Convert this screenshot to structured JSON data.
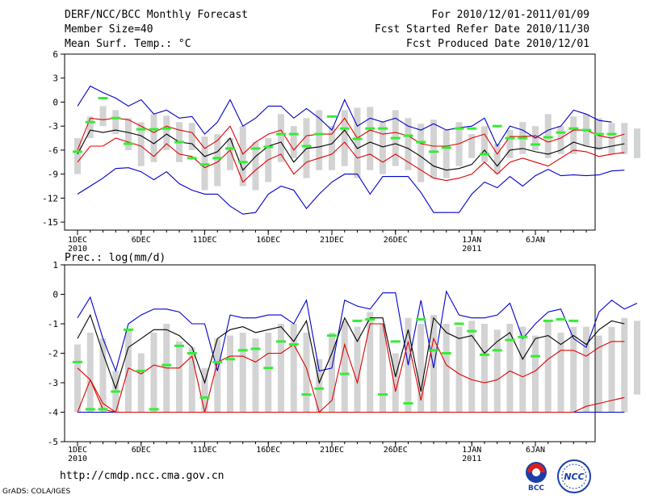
{
  "header": {
    "title": "DERF/NCC/BCC Monthly Forecast",
    "member_size": "Member Size=40",
    "period": "For 2010/12/01-2011/01/09",
    "fcst_started": "Fcst Started Refer Date 2010/11/30",
    "fcst_produced": "Fcst Produced Date 2010/12/01"
  },
  "footer": {
    "url": "http://cmdp.ncc.cma.gov.cn",
    "grads_credit": "GrADS: COLA/IGES",
    "logo_bcc": "BCC",
    "logo_ncc": "NCC"
  },
  "colors": {
    "box": "#d3d3d3",
    "ensemble_mean": "#000000",
    "inner_band": "#e00000",
    "outer_band": "#0000cc",
    "observed": "#33ee33"
  },
  "chart_data": [
    {
      "type": "line",
      "title": "Mean Surf. Temp.: °C",
      "ylim": [
        -16,
        6
      ],
      "yticks": [
        6,
        3,
        0,
        -3,
        -6,
        -9,
        -12,
        -15
      ],
      "xticks": [
        {
          "day": 1,
          "label": "1DEC",
          "sub": "2010"
        },
        {
          "day": 6,
          "label": "6DEC",
          "sub": ""
        },
        {
          "day": 11,
          "label": "11DEC",
          "sub": ""
        },
        {
          "day": 16,
          "label": "16DEC",
          "sub": ""
        },
        {
          "day": 21,
          "label": "21DEC",
          "sub": ""
        },
        {
          "day": 26,
          "label": "26DEC",
          "sub": ""
        },
        {
          "day": 32,
          "label": "1JAN",
          "sub": "2011"
        },
        {
          "day": 37,
          "label": "6JAN",
          "sub": ""
        }
      ],
      "box_top": [
        -4.5,
        -1.8,
        -0.5,
        -1.0,
        -2.0,
        -2.5,
        -1.5,
        -1.7,
        -2.5,
        -2.6,
        -4.3,
        -4.0,
        -4.5,
        -3.0,
        -5.0,
        -4.5,
        -1.5,
        -3.0,
        -2.0,
        -1.0,
        -3.0,
        -1.0,
        -0.7,
        -0.6,
        -2.5,
        -1.0,
        -2.0,
        -2.7,
        -2.2,
        -3.5,
        -2.5,
        -4.0,
        -3.0,
        -5.2,
        -3.5,
        -2.5,
        -3.0,
        -1.5,
        -3.0,
        -1.8,
        -1.5,
        -2.0,
        -2.6,
        -2.6,
        -3.3
      ],
      "box_bottom": [
        -9.0,
        -4.5,
        -3.0,
        -4.0,
        -6.0,
        -8.0,
        -7.5,
        -6.0,
        -7.5,
        -6.0,
        -11.0,
        -10.5,
        -8.5,
        -10.5,
        -11.0,
        -10.0,
        -7.5,
        -7.0,
        -9.5,
        -8.5,
        -8.5,
        -8.0,
        -9.5,
        -8.5,
        -9.0,
        -8.0,
        -8.5,
        -10.0,
        -9.5,
        -9.5,
        -8.0,
        -7.0,
        -7.5,
        -9.0,
        -7.0,
        -6.5,
        -6.0,
        -7.0,
        -6.5,
        -6.5,
        -5.5,
        -6.0,
        -6.5,
        -6.5,
        -7.0
      ],
      "series": [
        {
          "name": "outer_upper",
          "color": "outer_band",
          "values": [
            -0.5,
            2.0,
            1.2,
            0.5,
            -0.5,
            0.3,
            -1.5,
            -1.0,
            -2.0,
            -1.8,
            -4.0,
            -2.5,
            0.3,
            -3.0,
            -2.0,
            -0.5,
            -0.5,
            -2.0,
            -0.8,
            -2.0,
            -3.5,
            0.3,
            -3.0,
            -2.0,
            -2.5,
            -2.0,
            -3.0,
            -3.5,
            -2.7,
            -3.5,
            -3.2,
            -3.0,
            -2.0,
            -5.5,
            -3.0,
            -3.5,
            -4.5,
            -3.5,
            -3.0,
            -1.0,
            -1.5,
            -2.3,
            -2.5
          ]
        },
        {
          "name": "inner_upper",
          "color": "inner_band",
          "values": [
            -6.0,
            -2.0,
            -2.2,
            -2.0,
            -2.2,
            -3.0,
            -3.8,
            -3.0,
            -3.5,
            -3.8,
            -5.8,
            -4.8,
            -3.0,
            -6.5,
            -5.0,
            -4.0,
            -3.5,
            -6.0,
            -4.2,
            -4.0,
            -4.0,
            -2.0,
            -4.5,
            -3.5,
            -4.0,
            -3.8,
            -4.2,
            -5.2,
            -5.5,
            -5.5,
            -5.2,
            -4.5,
            -4.0,
            -6.5,
            -4.3,
            -4.3,
            -4.2,
            -5.0,
            -4.5,
            -3.5,
            -3.5,
            -4.2,
            -4.5,
            -4.0
          ]
        },
        {
          "name": "ensemble_mean",
          "color": "ensemble_mean",
          "values": [
            -6.5,
            -3.5,
            -3.8,
            -3.5,
            -3.8,
            -4.2,
            -5.2,
            -4.0,
            -5.0,
            -5.2,
            -6.8,
            -6.2,
            -4.5,
            -8.5,
            -6.8,
            -5.5,
            -5.0,
            -7.5,
            -5.8,
            -5.6,
            -5.2,
            -3.5,
            -5.8,
            -5.0,
            -5.6,
            -5.2,
            -5.8,
            -6.8,
            -8.0,
            -8.5,
            -8.3,
            -7.8,
            -6.0,
            -8.0,
            -6.0,
            -5.8,
            -6.2,
            -6.5,
            -6.0,
            -5.0,
            -5.5,
            -5.8,
            -5.5,
            -5.2
          ]
        },
        {
          "name": "inner_lower",
          "color": "inner_band",
          "values": [
            -7.5,
            -5.5,
            -5.5,
            -4.5,
            -5.0,
            -5.5,
            -6.8,
            -5.2,
            -6.5,
            -6.8,
            -8.2,
            -7.5,
            -6.0,
            -10.0,
            -8.5,
            -7.2,
            -6.5,
            -9.0,
            -7.5,
            -7.0,
            -6.5,
            -5.0,
            -7.0,
            -6.5,
            -7.5,
            -6.5,
            -7.5,
            -8.5,
            -9.5,
            -9.8,
            -9.5,
            -9.0,
            -7.5,
            -9.0,
            -7.5,
            -7.0,
            -7.5,
            -8.0,
            -7.0,
            -6.0,
            -6.2,
            -6.8,
            -6.5,
            -6.3
          ]
        },
        {
          "name": "outer_lower",
          "color": "outer_band",
          "values": [
            -11.5,
            -10.5,
            -9.5,
            -8.3,
            -8.2,
            -8.7,
            -9.7,
            -8.7,
            -10.2,
            -11.0,
            -11.5,
            -11.5,
            -13.0,
            -14.0,
            -13.8,
            -11.5,
            -10.5,
            -11.0,
            -13.3,
            -11.5,
            -10.0,
            -9.0,
            -9.0,
            -11.5,
            -9.3,
            -9.3,
            -9.3,
            -11.3,
            -13.8,
            -13.8,
            -13.8,
            -11.5,
            -10.0,
            -10.7,
            -9.3,
            -10.5,
            -9.2,
            -8.4,
            -9.2,
            -9.1,
            -9.2,
            -9.1,
            -8.6,
            -8.5
          ]
        }
      ],
      "observed": [
        -6.2,
        -2.5,
        0.5,
        -2.0,
        -5.2,
        -3.4,
        -3.4,
        -3.3,
        -5.0,
        -7.0,
        -7.8,
        -7.0,
        -5.8,
        -7.5,
        -5.8,
        -5.6,
        -4.0,
        -4.0,
        -5.5,
        -4.0,
        -1.8,
        -3.3,
        -4.6,
        -3.3,
        -3.3,
        -4.5,
        -4.2,
        -5.0,
        -6.2,
        -5.7,
        -3.3,
        -3.3,
        -6.5,
        -3.0,
        -4.5,
        -4.5,
        -5.3,
        -4.4,
        -3.8,
        -3.3,
        -3.5,
        -4.0,
        -4.0
      ]
    },
    {
      "type": "line",
      "title": "Prec.: log(mm/d)",
      "ylim": [
        -5,
        1
      ],
      "yticks": [
        1,
        0,
        -1,
        -2,
        -3,
        -4,
        -5
      ],
      "xticks": [
        {
          "day": 1,
          "label": "1DEC",
          "sub": "2010"
        },
        {
          "day": 6,
          "label": "6DEC",
          "sub": ""
        },
        {
          "day": 11,
          "label": "11DEC",
          "sub": ""
        },
        {
          "day": 16,
          "label": "16DEC",
          "sub": ""
        },
        {
          "day": 21,
          "label": "21DEC",
          "sub": ""
        },
        {
          "day": 26,
          "label": "26DEC",
          "sub": ""
        },
        {
          "day": 32,
          "label": "1JAN",
          "sub": "2011"
        },
        {
          "day": 37,
          "label": "6JAN",
          "sub": ""
        }
      ],
      "box_top": [
        -1.7,
        -1.3,
        -1.5,
        -2.6,
        -1.2,
        -2.0,
        -1.3,
        -1.0,
        -1.6,
        -1.8,
        -2.5,
        -1.5,
        -1.4,
        -1.3,
        -1.5,
        -1.3,
        -1.0,
        -1.0,
        -1.3,
        -2.2,
        -1.3,
        -0.9,
        -1.1,
        -0.6,
        -1.0,
        -2.0,
        -0.8,
        -1.0,
        -0.7,
        -1.0,
        -1.1,
        -0.9,
        -1.0,
        -1.2,
        -1.0,
        -1.1,
        -1.4,
        -0.9,
        -1.3,
        -1.1,
        -1.1,
        -1.4,
        -1.1,
        -0.8,
        -0.9
      ],
      "box_bottom": [
        -4.0,
        -4.0,
        -4.0,
        -4.0,
        -4.0,
        -4.0,
        -4.0,
        -4.0,
        -4.0,
        -4.0,
        -4.0,
        -4.0,
        -4.0,
        -4.0,
        -4.0,
        -4.0,
        -4.0,
        -4.0,
        -4.0,
        -4.0,
        -4.0,
        -4.0,
        -4.0,
        -4.0,
        -4.0,
        -4.0,
        -4.0,
        -4.0,
        -4.0,
        -4.0,
        -4.0,
        -4.0,
        -4.0,
        -4.0,
        -4.0,
        -4.0,
        -4.0,
        -4.0,
        -4.0,
        -4.0,
        -4.0,
        -4.0,
        -4.0,
        -4.0,
        -3.4
      ],
      "series": [
        {
          "name": "outer_upper",
          "color": "outer_band",
          "values": [
            -0.8,
            -0.1,
            -1.5,
            -2.6,
            -1.0,
            -0.7,
            -0.5,
            -0.5,
            -0.6,
            -1.0,
            -1.0,
            -2.6,
            -0.7,
            -0.8,
            -0.8,
            -0.7,
            -0.7,
            -1.0,
            -0.2,
            -2.6,
            -2.5,
            -0.2,
            -0.4,
            -0.5,
            0.05,
            0.05,
            -2.4,
            -0.2,
            -2.5,
            0.1,
            -0.7,
            -0.8,
            -0.8,
            -0.7,
            -0.3,
            -1.5,
            -1.0,
            -0.6,
            -0.5,
            -1.5,
            -1.8,
            -0.6,
            -0.2,
            -0.5,
            -0.3
          ]
        },
        {
          "name": "ensemble_mean",
          "color": "ensemble_mean",
          "values": [
            -1.5,
            -0.7,
            -2.0,
            -3.2,
            -1.8,
            -1.5,
            -1.2,
            -1.2,
            -1.4,
            -1.8,
            -3.0,
            -1.5,
            -1.2,
            -1.1,
            -1.3,
            -1.2,
            -1.1,
            -1.6,
            -0.9,
            -3.0,
            -2.0,
            -0.8,
            -1.6,
            -0.8,
            -0.8,
            -2.8,
            -1.2,
            -3.3,
            -0.8,
            -1.3,
            -1.5,
            -1.4,
            -2.0,
            -1.6,
            -1.3,
            -2.2,
            -1.5,
            -1.4,
            -1.7,
            -1.4,
            -1.7,
            -1.2,
            -0.9,
            -1.0
          ]
        },
        {
          "name": "inner_lower",
          "color": "inner_band",
          "values": [
            -2.5,
            -2.9,
            -3.7,
            -4.0,
            -2.5,
            -2.7,
            -2.4,
            -2.5,
            -2.5,
            -2.1,
            -4.0,
            -2.3,
            -2.1,
            -2.1,
            -2.3,
            -2.0,
            -2.0,
            -1.7,
            -2.5,
            -4.0,
            -3.6,
            -1.7,
            -3.0,
            -1.0,
            -1.0,
            -3.3,
            -1.6,
            -3.6,
            -1.5,
            -2.4,
            -2.7,
            -2.9,
            -3.0,
            -2.9,
            -2.6,
            -2.8,
            -2.6,
            -2.2,
            -1.9,
            -1.9,
            -2.1,
            -1.8,
            -1.6,
            -1.6
          ]
        },
        {
          "name": "outer_lower",
          "color": "outer_band",
          "values": [
            -4.0,
            -4.0,
            -4.0,
            -4.0,
            -4.0,
            -4.0,
            -4.0,
            -4.0,
            -4.0,
            -4.0,
            -4.0,
            -4.0,
            -4.0,
            -4.0,
            -4.0,
            -4.0,
            -4.0,
            -4.0,
            -4.0,
            -4.0,
            -4.0,
            -4.0,
            -4.0,
            -4.0,
            -4.0,
            -4.0,
            -4.0,
            -4.0,
            -4.0,
            -4.0,
            -4.0,
            -4.0,
            -4.0,
            -4.0,
            -4.0,
            -4.0,
            -4.0,
            -4.0,
            -4.0,
            -4.0,
            -4.0,
            -4.0,
            -4.0,
            -4.0
          ]
        },
        {
          "name": "red_min",
          "color": "inner_band",
          "values": [
            -4.0,
            -2.9,
            -3.9,
            -4.0,
            -4.0,
            -4.0,
            -4.0,
            -4.0,
            -4.0,
            -4.0,
            -4.0,
            -4.0,
            -4.0,
            -4.0,
            -4.0,
            -4.0,
            -4.0,
            -4.0,
            -4.0,
            -4.0,
            -4.0,
            -4.0,
            -4.0,
            -4.0,
            -4.0,
            -4.0,
            -4.0,
            -4.0,
            -4.0,
            -4.0,
            -4.0,
            -4.0,
            -4.0,
            -4.0,
            -4.0,
            -4.0,
            -4.0,
            -4.0,
            -4.0,
            -4.0,
            -3.8,
            -3.7,
            -3.6,
            -3.5
          ]
        }
      ],
      "observed": [
        -2.3,
        -3.9,
        -3.9,
        -3.3,
        -1.2,
        -2.6,
        -3.9,
        -2.4,
        -1.75,
        -2.0,
        -3.5,
        -2.3,
        -2.2,
        -1.9,
        -1.85,
        -2.5,
        -1.6,
        -1.7,
        -3.4,
        -3.2,
        -1.4,
        -2.7,
        -0.9,
        -0.85,
        -3.4,
        -1.6,
        -3.7,
        -0.85,
        -1.9,
        -2.0,
        -1.0,
        -1.25,
        -2.05,
        -1.9,
        -1.55,
        -1.45,
        -2.1,
        -0.9,
        -0.85,
        -0.9
      ]
    }
  ]
}
